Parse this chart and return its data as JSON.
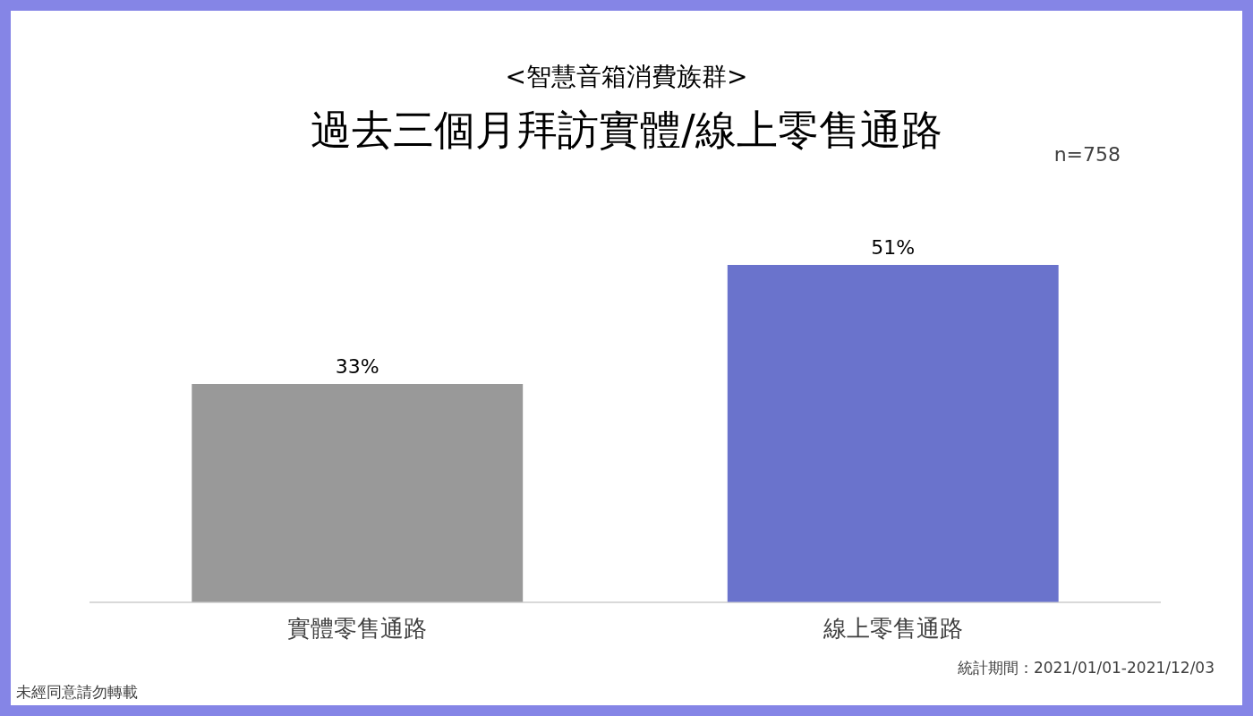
{
  "chart_data": {
    "type": "bar",
    "title": "過去三個月拜訪實體/線上零售通路",
    "subtitle": "<智慧音箱消費族群>",
    "categories": [
      "實體零售通路",
      "線上零售通路"
    ],
    "values": [
      33,
      51
    ],
    "colors": [
      "#999999",
      "#6a73cc"
    ],
    "value_labels": [
      "33%",
      "51%"
    ],
    "annotations": [
      "n=758",
      "統計期間：2021/01/01-2021/12/03",
      "未經同意請勿轉載"
    ]
  }
}
